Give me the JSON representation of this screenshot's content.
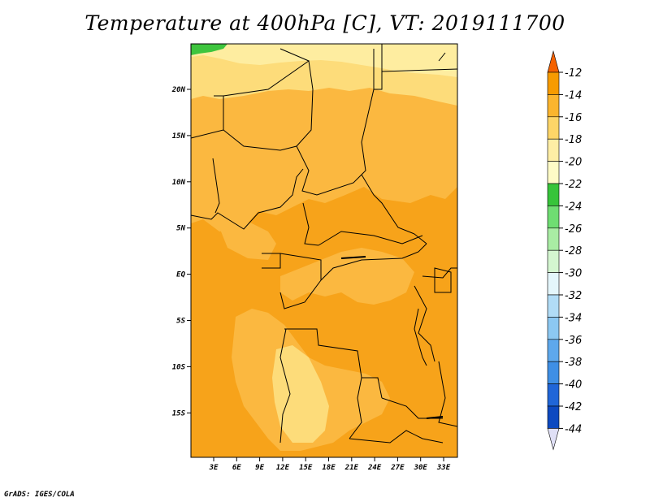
{
  "title": "Temperature at 400hPa [C], VT: 2019111700",
  "credit": "GrADS: IGES/COLA",
  "map": {
    "lat_labels": [
      "20N",
      "15N",
      "10N",
      "5N",
      "EQ",
      "5S",
      "10S",
      "15S"
    ],
    "lon_labels": [
      "3E",
      "6E",
      "9E",
      "12E",
      "15E",
      "18E",
      "21E",
      "24E",
      "27E",
      "30E",
      "33E"
    ],
    "fill_colors": {
      "minus24_to_minus22": "#3ec53e",
      "minus22_to_minus20": "#feeda0",
      "minus20_to_minus18": "#fddc7a",
      "minus18_to_minus16": "#fbb840",
      "minus16_to_minus14": "#f7a31a",
      "border": "#000000"
    }
  },
  "colorbar": {
    "levels": [
      "-12",
      "-14",
      "-16",
      "-18",
      "-20",
      "-22",
      "-24",
      "-26",
      "-28",
      "-30",
      "-32",
      "-34",
      "-36",
      "-38",
      "-40",
      "-42",
      "-44"
    ],
    "colors": [
      "#f56200",
      "#f79b00",
      "#fbb52e",
      "#fdd568",
      "#feeea5",
      "#fefbc6",
      "#37c43a",
      "#6fdd72",
      "#a9eca4",
      "#d4f6d0",
      "#e4f6fb",
      "#b1dcf6",
      "#8cc8f2",
      "#5ea8ec",
      "#3f8fe5",
      "#2066d8",
      "#0d49c0",
      "#0b1c80",
      "#e0e0f6"
    ]
  }
}
